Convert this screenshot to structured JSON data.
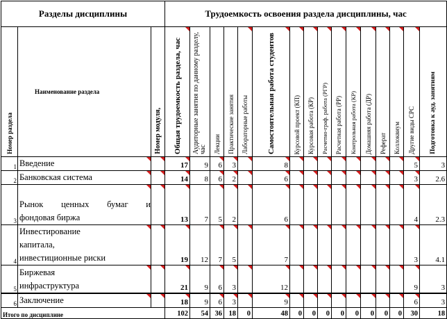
{
  "table": {
    "group_header_left": "Разделы дисциплины",
    "group_header_right": "Трудоемкость освоения раздела дисциплины, час",
    "column_headers": {
      "row_number": "Номер раздела",
      "section_name": "Наименование раздела",
      "module_number": "Номер модуля,",
      "total_labor": "Общая трудоемкость раздела, час",
      "auditorium": "Аудиторные занятия по данному разделу, час",
      "lectures": "Лекции",
      "practical": "Практические занятия",
      "lab": "Лабораторные работы",
      "self_work": "Самостоятельная работа студентов",
      "course_project": "Курсовой проект (КП)",
      "course_work": "Курсовая работа (КР)",
      "calc_graphic": "Расчетно-граф. работа (РГР)",
      "calc_work": "Расчетная работа (РР)",
      "control_work": "Контрольная работа (КР)",
      "home_work": "Домашняя работа (ДР)",
      "essay": "Реферат",
      "colloquium": "Коллоквиум",
      "other_srs": "Другие виды СРС",
      "prep_classes": "Подготовка к ауд. занятиям"
    },
    "rows": [
      {
        "num": "1",
        "name_lines": [
          "Введение"
        ],
        "total": "17",
        "aud": "9",
        "lec": "6",
        "prac": "3",
        "lab": "",
        "self": "8",
        "other": "5",
        "prep": "3"
      },
      {
        "num": "2",
        "name_lines": [
          "Банковская система"
        ],
        "total": "14",
        "aud": "8",
        "lec": "6",
        "prac": "2",
        "lab": "",
        "self": "6",
        "other": "3",
        "prep": "2.6"
      },
      {
        "num": "3",
        "name_lines": [
          "Рынок ценных бумаг и",
          "фондовая биржа"
        ],
        "total": "13",
        "aud": "7",
        "lec": "5",
        "prac": "2",
        "lab": "",
        "self": "6",
        "other": "4",
        "prep": "2.3"
      },
      {
        "num": "4",
        "name_lines": [
          "Инвестирование",
          "капитала,",
          "инвестиционные риски"
        ],
        "total": "19",
        "aud": "12",
        "lec": "7",
        "prac": "5",
        "lab": "",
        "self": "7",
        "other": "3",
        "prep": "4.1"
      },
      {
        "num": "5",
        "name_lines": [
          "Биржевая",
          "инфраструктура"
        ],
        "total": "21",
        "aud": "9",
        "lec": "6",
        "prac": "3",
        "lab": "",
        "self": "12",
        "other": "9",
        "prep": "3"
      },
      {
        "num": "6",
        "name_lines": [
          "Заключение"
        ],
        "total": "18",
        "aud": "9",
        "lec": "6",
        "prac": "3",
        "lab": "",
        "self": "9",
        "other": "6",
        "prep": "3"
      }
    ],
    "total_row": {
      "label": "Итого по дисциплине",
      "values": [
        "102",
        "54",
        "36",
        "18",
        "0",
        "48",
        "0",
        "0",
        "0",
        "0",
        "0",
        "0",
        "0",
        "0",
        "30",
        "18"
      ]
    }
  },
  "colors": {
    "comment_marker": "#d42020",
    "grid": "#000000"
  }
}
